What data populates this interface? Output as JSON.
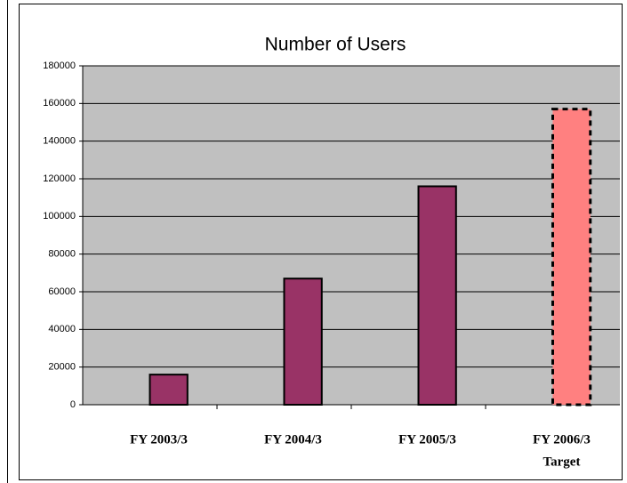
{
  "chart_data": {
    "type": "bar",
    "title": "Number of Users",
    "categories": [
      "FY 2003/3",
      "FY 2004/3",
      "FY 2005/3",
      "FY 2006/3"
    ],
    "annotations": [
      "Target"
    ],
    "values": [
      16000,
      67000,
      116000,
      157000
    ],
    "colors": [
      "#993366",
      "#993366",
      "#993366",
      "#ff8080"
    ],
    "dashed": [
      false,
      false,
      false,
      true
    ],
    "ylim": [
      0,
      180000
    ],
    "yticks": [
      0,
      20000,
      40000,
      60000,
      80000,
      100000,
      120000,
      140000,
      160000,
      180000
    ],
    "grid": true,
    "background": "#c0c0c0"
  }
}
